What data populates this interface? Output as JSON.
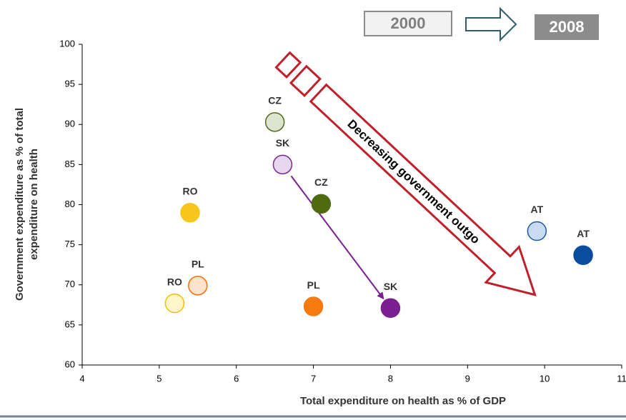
{
  "chart_data": {
    "type": "scatter",
    "xlabel": "Total expenditure on health as % of GDP",
    "ylabel": [
      "Government expenditure as % of total",
      "expenditure on health"
    ],
    "annotation": "Decreasing government outgo",
    "xlim": [
      4,
      11
    ],
    "xticks": [
      4,
      5,
      6,
      7,
      8,
      9,
      10,
      11
    ],
    "ylim": [
      60,
      100
    ],
    "yticks": [
      60,
      65,
      70,
      75,
      80,
      85,
      90,
      95,
      100
    ],
    "series": [
      {
        "name": "2000",
        "labels": [
          "RO",
          "PL",
          "CZ",
          "SK",
          "AT"
        ],
        "x": [
          5.2,
          5.5,
          6.5,
          6.6,
          9.9
        ],
        "values": [
          67.7,
          69.9,
          90.3,
          85,
          76.7
        ],
        "colors": [
          "#fff6c8",
          "#fde3cc",
          "#dde5d0",
          "#e6d6ee",
          "#c8dbf0"
        ],
        "strokes": [
          "#f0c000",
          "#f07010",
          "#4f6b1a",
          "#7a2a90",
          "#1a5aa0"
        ]
      },
      {
        "name": "2008",
        "labels": [
          "RO",
          "PL",
          "CZ",
          "SK",
          "AT"
        ],
        "x": [
          5.4,
          7.0,
          7.1,
          8.0,
          10.5
        ],
        "values": [
          79,
          67.3,
          80.1,
          67.1,
          73.7
        ],
        "colors": [
          "#f8c51c",
          "#f57b10",
          "#4f6b12",
          "#7b1e92",
          "#0a4d9e"
        ],
        "strokes": [
          "#f8c51c",
          "#f57b10",
          "#4f6b12",
          "#7b1e92",
          "#0a4d9e"
        ]
      }
    ]
  }
}
